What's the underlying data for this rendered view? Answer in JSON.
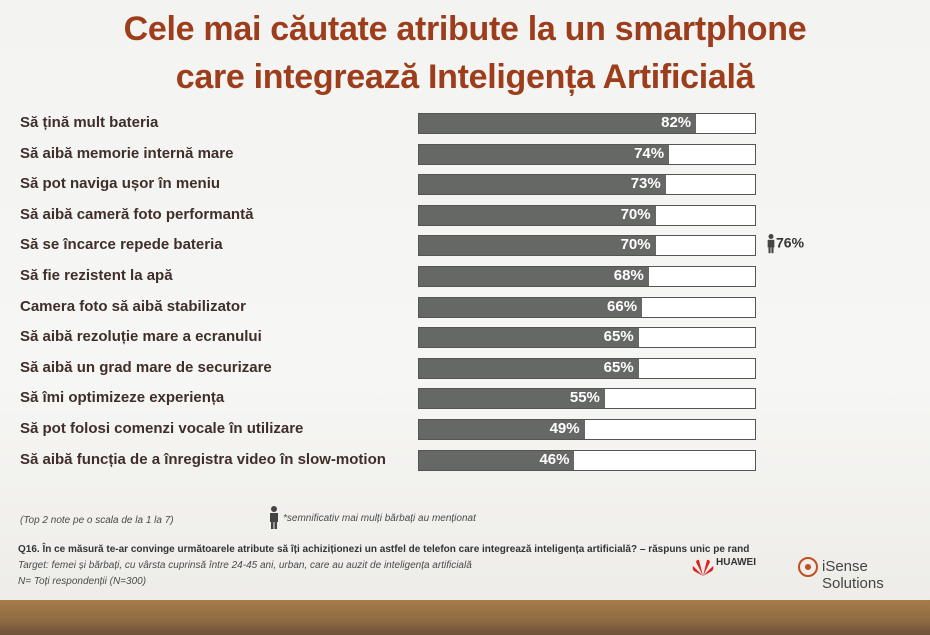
{
  "title_line1": "Cele mai căutate atribute la un smartphone",
  "title_line2": "care integrează Inteligența Artificială",
  "chart_data": {
    "type": "bar",
    "categories": [
      "Să țină mult bateria",
      "Să aibă memorie internă mare",
      "Să pot naviga ușor în meniu",
      "Să aibă cameră foto performantă",
      "Să se încarce repede bateria",
      "Să fie rezistent la apă",
      "Camera foto să aibă stabilizator",
      "Să aibă rezoluție mare a ecranului",
      "Să aibă un grad mare de securizare",
      "Să îmi optimizeze experiența",
      "Să pot folosi comenzi vocale în utilizare",
      "Să aibă funcția de a înregistra video în slow-motion"
    ],
    "values": [
      82,
      74,
      73,
      70,
      70,
      68,
      66,
      65,
      65,
      55,
      49,
      46
    ],
    "value_labels": [
      "82%",
      "74%",
      "73%",
      "70%",
      "70%",
      "68%",
      "66%",
      "65%",
      "65%",
      "55%",
      "49%",
      "46%"
    ],
    "highlight": {
      "row": 4,
      "label": "76%",
      "icon": "man-icon"
    },
    "xlim": [
      0,
      100
    ],
    "colors": {
      "fill": "#666866",
      "track": "#ffffff"
    }
  },
  "footer": {
    "scale_note": "(Top 2 note pe o scala de la 1 la 7)",
    "icon_note": "*semnificativ mai mulți bărbați au menționat",
    "question": "Q16. În ce măsură te-ar convinge următoarele atribute să îți achiziționezi un astfel de telefon care integrează inteligența artificială? – răspuns unic pe rand",
    "target": "Target: femei și bărbați, cu vârsta cuprinsă între 24-45 ani, urban, care au auzit de inteligența artificială",
    "sample": "N= Toți respondenții (N=300)",
    "logo1": "HUAWEI",
    "logo2": "iSense Solutions"
  }
}
